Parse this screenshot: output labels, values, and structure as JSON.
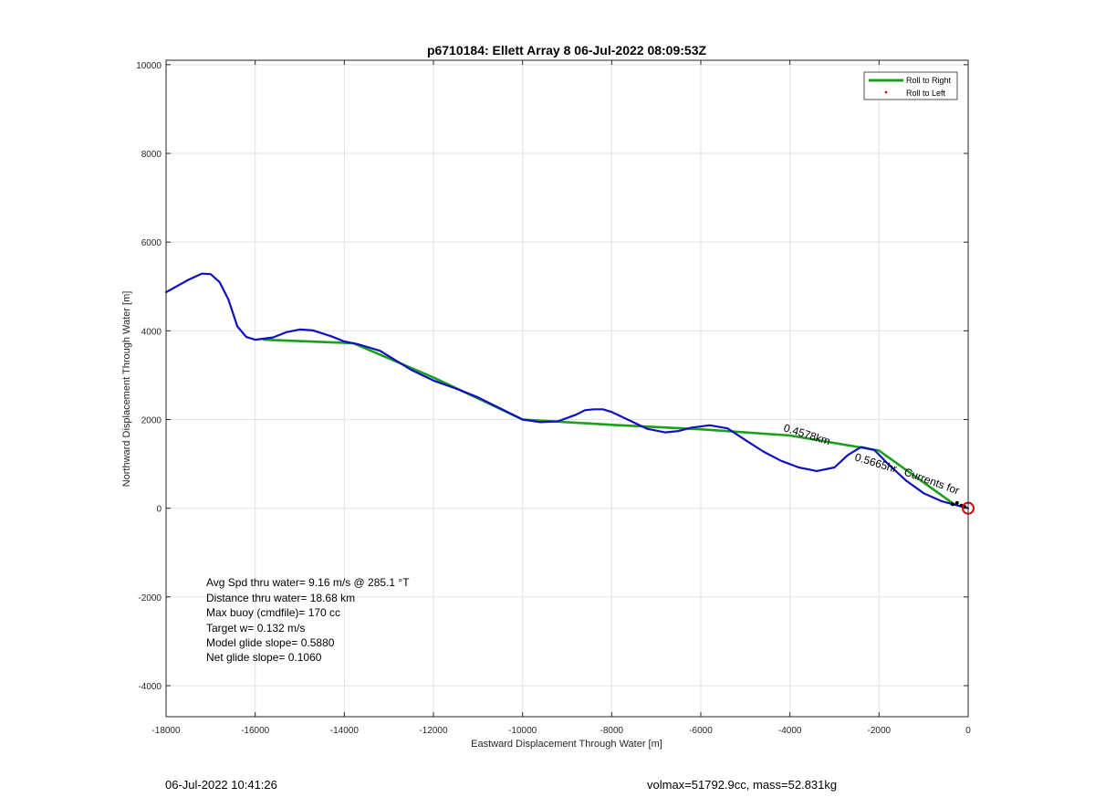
{
  "chart_data": {
    "type": "line",
    "title": "p6710184: Ellett Array 8 06-Jul-2022 08:09:53Z",
    "xlabel": "Eastward Displacement Through Water [m]",
    "ylabel": "Northward Displacement Through Water [m]",
    "xlim": [
      -18000,
      0
    ],
    "ylim": [
      -4700,
      10100
    ],
    "x_ticks": [
      -18000,
      -16000,
      -14000,
      -12000,
      -10000,
      -8000,
      -6000,
      -4000,
      -2000,
      0
    ],
    "x_tick_labels": [
      "-18000",
      "-16000",
      "-14000",
      "-12000",
      "-10000",
      "-8000",
      "-6000",
      "-4000",
      "-2000",
      "0"
    ],
    "y_ticks": [
      -4000,
      -2000,
      0,
      2000,
      4000,
      6000,
      8000,
      10000
    ],
    "y_tick_labels": [
      "-4000",
      "-2000",
      "0",
      "2000",
      "4000",
      "6000",
      "8000",
      "10000"
    ],
    "grid": true,
    "legend_position": "top-right",
    "legend": [
      {
        "name": "Roll to Right",
        "color": "#1aa01a",
        "marker": "line"
      },
      {
        "name": "Roll to Left",
        "color": "#e00000",
        "marker": "dot"
      }
    ],
    "series": [
      {
        "name": "Roll to Right",
        "color": "#1aa01a",
        "x": [
          -15800,
          -13800,
          -12000,
          -10000,
          -8000,
          -6000,
          -4000,
          -2000,
          -300
        ],
        "y": [
          3800,
          3720,
          2950,
          2000,
          1880,
          1780,
          1640,
          1300,
          80
        ]
      },
      {
        "color": "#1010c0",
        "x": [
          -18000,
          -17500,
          -17200,
          -17000,
          -16800,
          -16600,
          -16400,
          -16200,
          -16000,
          -15600,
          -15300,
          -15000,
          -14700,
          -14300,
          -14000,
          -13700,
          -13200,
          -12500,
          -12000,
          -11500,
          -11000,
          -10500,
          -10000,
          -9600,
          -9200,
          -8800,
          -8600,
          -8400,
          -8200,
          -8000,
          -7600,
          -7200,
          -6800,
          -6500,
          -6200,
          -5800,
          -5400,
          -5000,
          -4600,
          -4200,
          -3800,
          -3400,
          -3000,
          -2700,
          -2400,
          -2100,
          -1800,
          -1400,
          -1000,
          -600,
          -300,
          0
        ],
        "y": [
          4870,
          5150,
          5290,
          5280,
          5100,
          4700,
          4100,
          3860,
          3800,
          3850,
          3970,
          4030,
          4010,
          3880,
          3760,
          3700,
          3550,
          3120,
          2880,
          2700,
          2500,
          2250,
          2000,
          1940,
          1960,
          2110,
          2210,
          2230,
          2230,
          2170,
          1980,
          1790,
          1710,
          1740,
          1820,
          1870,
          1800,
          1540,
          1280,
          1070,
          920,
          840,
          920,
          1200,
          1380,
          1310,
          1000,
          630,
          340,
          160,
          80,
          0
        ]
      }
    ],
    "annotations": [
      {
        "text": "Avg Spd thru water=  9.16 m/s @ 285.1 °T"
      },
      {
        "text": "Distance thru water= 18.68 km"
      },
      {
        "text": "Max buoy (cmdfile)= 170 cc"
      },
      {
        "text": "Target w= 0.132 m/s"
      },
      {
        "text": "Model glide slope= 0.5880"
      },
      {
        "text": "Net glide slope= 0.1060"
      }
    ],
    "rotated_label": "0.4578km",
    "rotated_label2": "0.5665hr",
    "rotated_label3": "Currents for"
  },
  "footer": {
    "left": "06-Jul-2022 10:41:26",
    "right": "volmax=51792.9cc, mass=52.831kg"
  }
}
